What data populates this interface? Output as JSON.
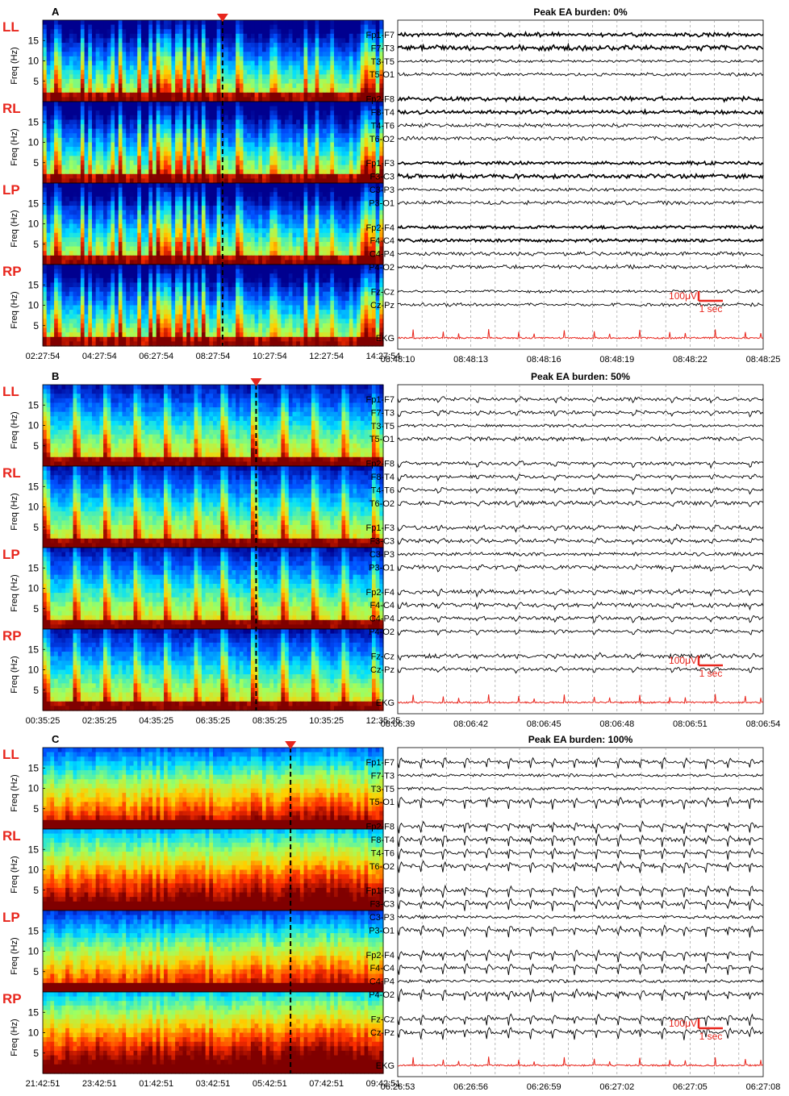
{
  "chart_data": [
    {
      "panel": "A",
      "spectrogram": {
        "type": "heatmap",
        "regions": [
          "LL",
          "RL",
          "LP",
          "RP"
        ],
        "ylabel": "Freq (Hz)",
        "yticks": [
          5,
          10,
          15
        ],
        "ylim": [
          0,
          20
        ],
        "xticks": [
          "02:27:54",
          "04:27:54",
          "06:27:54",
          "08:27:54",
          "10:27:54",
          "12:27:54",
          "14:27:54"
        ],
        "marker_time": "08:48:10",
        "colormap": [
          "#00008f",
          "#0050ff",
          "#00dfff",
          "#9fff60",
          "#ffd000",
          "#ff3000",
          "#800000"
        ],
        "seed": 11,
        "style": "bursty"
      },
      "eeg": {
        "type": "line",
        "title": "Peak EA burden: 0%",
        "channel_groups": [
          [
            "Fp1-F7",
            "F7-T3",
            "T3-T5",
            "T5-O1"
          ],
          [
            "Fp2-F8",
            "F8-T4",
            "T4-T6",
            "T6-O2"
          ],
          [
            "Fp1-F3",
            "F3-C3",
            "C3-P3",
            "P3-O1"
          ],
          [
            "Fp2-F4",
            "F4-C4",
            "C4-P4",
            "P4-O2"
          ],
          [
            "Fz-Cz",
            "Cz-Pz"
          ]
        ],
        "ekg_label": "EKG",
        "xticks": [
          "08:48:10",
          "08:48:13",
          "08:48:16",
          "08:48:19",
          "08:48:22",
          "08:48:25"
        ],
        "scale_amplitude": "100μV",
        "scale_time": "1 sec",
        "seed": 21,
        "discharge_level": 0
      }
    },
    {
      "panel": "B",
      "spectrogram": {
        "type": "heatmap",
        "regions": [
          "LL",
          "RL",
          "LP",
          "RP"
        ],
        "ylabel": "Freq (Hz)",
        "yticks": [
          5,
          10,
          15
        ],
        "ylim": [
          0,
          20
        ],
        "xticks": [
          "00:35:25",
          "02:35:25",
          "04:35:25",
          "06:35:25",
          "08:35:25",
          "10:35:25",
          "12:35:25"
        ],
        "marker_time": "08:06:39",
        "colormap": [
          "#00008f",
          "#0050ff",
          "#00dfff",
          "#9fff60",
          "#ffd000",
          "#ff3000",
          "#800000"
        ],
        "seed": 12,
        "style": "cyclic"
      },
      "eeg": {
        "type": "line",
        "title": "Peak EA burden: 50%",
        "channel_groups": [
          [
            "Fp1-F7",
            "F7-T3",
            "T3-T5",
            "T5-O1"
          ],
          [
            "Fp2-F8",
            "F8-T4",
            "T4-T6",
            "T6-O2"
          ],
          [
            "Fp1-F3",
            "F3-C3",
            "C3-P3",
            "P3-O1"
          ],
          [
            "Fp2-F4",
            "F4-C4",
            "C4-P4",
            "P4-O2"
          ],
          [
            "Fz-Cz",
            "Cz-Pz"
          ]
        ],
        "ekg_label": "EKG",
        "xticks": [
          "08:06:39",
          "08:06:42",
          "08:06:45",
          "08:06:48",
          "08:06:51",
          "08:06:54"
        ],
        "scale_amplitude": "100μV",
        "scale_time": "1 sec",
        "seed": 22,
        "discharge_level": 0.5
      }
    },
    {
      "panel": "C",
      "spectrogram": {
        "type": "heatmap",
        "regions": [
          "LL",
          "RL",
          "LP",
          "RP"
        ],
        "ylabel": "Freq (Hz)",
        "yticks": [
          5,
          10,
          15
        ],
        "ylim": [
          0,
          20
        ],
        "xticks": [
          "21:42:51",
          "23:42:51",
          "01:42:51",
          "03:42:51",
          "05:42:51",
          "07:42:51",
          "09:42:51"
        ],
        "marker_time": "06:26:53",
        "colormap": [
          "#00008f",
          "#0050ff",
          "#00dfff",
          "#9fff60",
          "#ffd000",
          "#ff3000",
          "#800000"
        ],
        "seed": 13,
        "style": "dense"
      },
      "eeg": {
        "type": "line",
        "title": "Peak EA burden: 100%",
        "channel_groups": [
          [
            "Fp1-F7",
            "F7-T3",
            "T3-T5",
            "T5-O1"
          ],
          [
            "Fp2-F8",
            "F8-T4",
            "T4-T6",
            "T6-O2"
          ],
          [
            "Fp1-F3",
            "F3-C3",
            "C3-P3",
            "P3-O1"
          ],
          [
            "Fp2-F4",
            "F4-C4",
            "C4-P4",
            "P4-O2"
          ],
          [
            "Fz-Cz",
            "Cz-Pz"
          ]
        ],
        "ekg_label": "EKG",
        "xticks": [
          "06:26:53",
          "06:26:56",
          "06:26:59",
          "06:27:02",
          "06:27:05",
          "06:27:08"
        ],
        "scale_amplitude": "100μV",
        "scale_time": "1 sec",
        "seed": 23,
        "discharge_level": 1
      }
    }
  ],
  "colors": {
    "accent_red": "#e8261d",
    "trace": "#000000",
    "ekg": "#e8261d",
    "grid": "#9a9a9a"
  }
}
